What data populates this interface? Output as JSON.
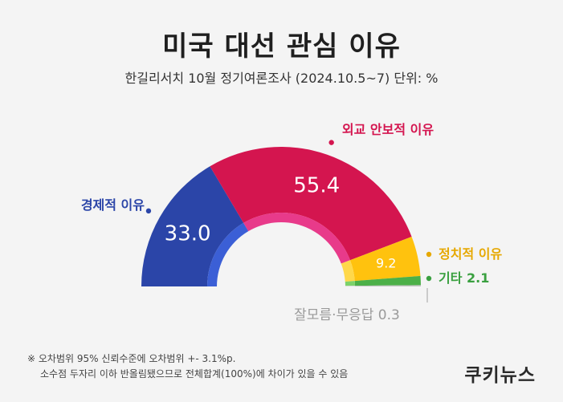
{
  "title": "미국 대선 관심 이유",
  "subtitle": "한길리서치 10월 정기여론조사 (2024.10.5~7) 단위: %",
  "footnote": {
    "line1": "※ 오차범위 95% 신뢰수준에 오차범위 +- 3.1%p.",
    "line2": "소수점 두자리 이하 반올림됐으므로 전체합계(100%)에 차이가 있을 수 있음"
  },
  "brand": "쿠키뉴스",
  "chart_data": {
    "type": "pie",
    "variant": "semicircle-donut",
    "unit": "%",
    "slices": [
      {
        "label": "경제적 이유",
        "value": 33.0,
        "value_label": "33.0",
        "color": "#2b45a8",
        "inner_color": "#3b5fd6"
      },
      {
        "label": "외교 안보적 이유",
        "value": 55.4,
        "value_label": "55.4",
        "color": "#d4154f",
        "inner_color": "#e83a8a"
      },
      {
        "label": "정치적 이유",
        "value": 9.2,
        "value_label": "9.2",
        "color": "#ffc20e",
        "inner_color": "#ffd84a"
      },
      {
        "label": "기타",
        "value": 2.1,
        "value_label": "2.1",
        "color": "#4cb048",
        "inner_color": "#7cd26a"
      },
      {
        "label": "잘모름·무응답",
        "value": 0.3,
        "value_label": "0.3",
        "color": "#c4c4c4",
        "inner_color": "#dcdcdc"
      }
    ],
    "label_colors": {
      "경제적 이유": "#2b45a8",
      "외교 안보적 이유": "#d4154f",
      "정치적 이유": "#e6a800",
      "기타": "#3aa040",
      "잘모름·무응답": "#9a9a9a"
    }
  }
}
